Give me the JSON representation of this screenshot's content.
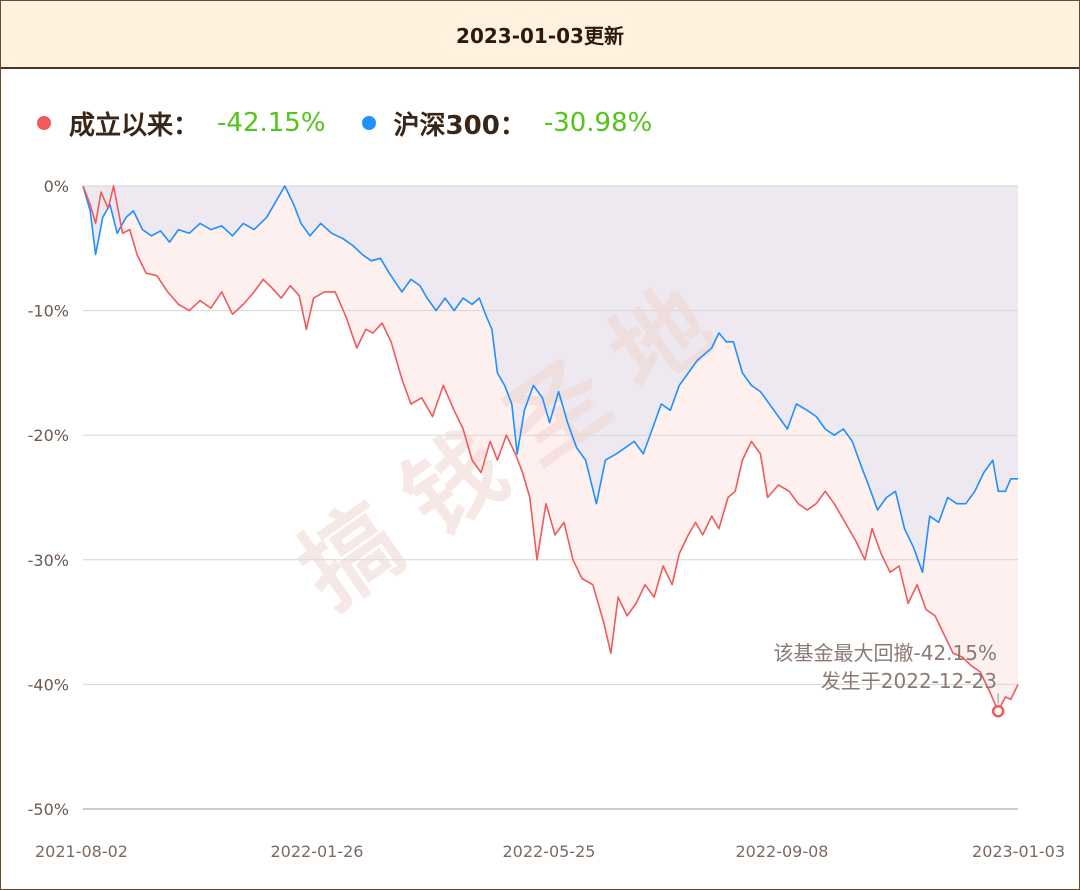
{
  "header": {
    "title": "2023-01-03更新"
  },
  "legend": [
    {
      "label": "成立以来：",
      "value": "-42.15%",
      "color": "#f05a5a"
    },
    {
      "label": "沪深300：",
      "value": "-30.98%",
      "color": "#1e90ff"
    }
  ],
  "watermark": "搞钱圣地",
  "annotation": {
    "line1": "该基金最大回撤-42.15%",
    "line2": "发生于2022-12-23",
    "date": "2022-12-23",
    "value": -42.15
  },
  "colors": {
    "fund": "#f05a5a",
    "index": "#1e90ff",
    "fund_area": "#fff0f0",
    "index_area": "#eee8f0",
    "value_positive": "#52c41a"
  },
  "chart_data": {
    "type": "line",
    "x_tick_labels": [
      "2021-08-02",
      "2022-01-26",
      "2022-05-25",
      "2022-09-08",
      "2023-01-03"
    ],
    "y_tick_labels": [
      "0%",
      "-10%",
      "-20%",
      "-30%",
      "-40%",
      "-50%"
    ],
    "ylim": [
      -50,
      0
    ],
    "xlim": [
      "2021-08-02",
      "2023-01-03"
    ],
    "grid": true,
    "legend_position": "top-left",
    "series": [
      {
        "name": "成立以来",
        "points": [
          [
            "2021-08-02",
            0
          ],
          [
            "2021-08-06",
            -1.5
          ],
          [
            "2021-08-09",
            -3
          ],
          [
            "2021-08-12",
            -0.5
          ],
          [
            "2021-08-16",
            -1.8
          ],
          [
            "2021-08-19",
            0
          ],
          [
            "2021-08-24",
            -3.8
          ],
          [
            "2021-08-28",
            -3.5
          ],
          [
            "2021-09-01",
            -5.5
          ],
          [
            "2021-09-06",
            -7
          ],
          [
            "2021-09-12",
            -7.2
          ],
          [
            "2021-09-18",
            -8.5
          ],
          [
            "2021-09-24",
            -9.5
          ],
          [
            "2021-09-30",
            -10
          ],
          [
            "2021-10-06",
            -9.2
          ],
          [
            "2021-10-12",
            -9.8
          ],
          [
            "2021-10-18",
            -8.5
          ],
          [
            "2021-10-24",
            -10.3
          ],
          [
            "2021-10-30",
            -9.5
          ],
          [
            "2021-11-05",
            -8.5
          ],
          [
            "2021-11-10",
            -7.5
          ],
          [
            "2021-11-15",
            -8.2
          ],
          [
            "2021-11-20",
            -9
          ],
          [
            "2021-11-25",
            -8
          ],
          [
            "2021-11-30",
            -8.8
          ],
          [
            "2021-12-04",
            -11.5
          ],
          [
            "2021-12-08",
            -9
          ],
          [
            "2021-12-14",
            -8.5
          ],
          [
            "2021-12-20",
            -8.5
          ],
          [
            "2021-12-26",
            -10.5
          ],
          [
            "2022-01-01",
            -13
          ],
          [
            "2022-01-06",
            -11.5
          ],
          [
            "2022-01-10",
            -11.8
          ],
          [
            "2022-01-15",
            -11
          ],
          [
            "2022-01-20",
            -12.5
          ],
          [
            "2022-01-26",
            -15.5
          ],
          [
            "2022-01-31",
            -17.5
          ],
          [
            "2022-02-06",
            -17
          ],
          [
            "2022-02-12",
            -18.5
          ],
          [
            "2022-02-18",
            -16
          ],
          [
            "2022-02-24",
            -18
          ],
          [
            "2022-03-01",
            -19.5
          ],
          [
            "2022-03-06",
            -22
          ],
          [
            "2022-03-11",
            -23
          ],
          [
            "2022-03-16",
            -20.5
          ],
          [
            "2022-03-20",
            -22
          ],
          [
            "2022-03-25",
            -20
          ],
          [
            "2022-03-30",
            -21.5
          ],
          [
            "2022-04-03",
            -23
          ],
          [
            "2022-04-07",
            -25
          ],
          [
            "2022-04-11",
            -30
          ],
          [
            "2022-04-16",
            -25.5
          ],
          [
            "2022-04-21",
            -28
          ],
          [
            "2022-04-26",
            -27
          ],
          [
            "2022-05-01",
            -30
          ],
          [
            "2022-05-06",
            -31.5
          ],
          [
            "2022-05-12",
            -32
          ],
          [
            "2022-05-18",
            -35
          ],
          [
            "2022-05-22",
            -37.5
          ],
          [
            "2022-05-26",
            -33
          ],
          [
            "2022-05-31",
            -34.5
          ],
          [
            "2022-06-05",
            -33.5
          ],
          [
            "2022-06-10",
            -32
          ],
          [
            "2022-06-15",
            -33
          ],
          [
            "2022-06-20",
            -30.5
          ],
          [
            "2022-06-25",
            -32
          ],
          [
            "2022-06-29",
            -29.5
          ],
          [
            "2022-07-04",
            -28
          ],
          [
            "2022-07-08",
            -27
          ],
          [
            "2022-07-12",
            -28
          ],
          [
            "2022-07-17",
            -26.5
          ],
          [
            "2022-07-21",
            -27.5
          ],
          [
            "2022-07-26",
            -25
          ],
          [
            "2022-07-30",
            -24.5
          ],
          [
            "2022-08-03",
            -22
          ],
          [
            "2022-08-08",
            -20.5
          ],
          [
            "2022-08-13",
            -21.5
          ],
          [
            "2022-08-17",
            -25
          ],
          [
            "2022-08-23",
            -24
          ],
          [
            "2022-08-29",
            -24.5
          ],
          [
            "2022-09-03",
            -25.5
          ],
          [
            "2022-09-08",
            -26
          ],
          [
            "2022-09-13",
            -25.5
          ],
          [
            "2022-09-18",
            -24.5
          ],
          [
            "2022-09-23",
            -25.5
          ],
          [
            "2022-09-29",
            -27
          ],
          [
            "2022-10-05",
            -28.5
          ],
          [
            "2022-10-10",
            -30
          ],
          [
            "2022-10-14",
            -27.5
          ],
          [
            "2022-10-19",
            -29.5
          ],
          [
            "2022-10-24",
            -31
          ],
          [
            "2022-10-29",
            -30.5
          ],
          [
            "2022-11-03",
            -33.5
          ],
          [
            "2022-11-08",
            -32
          ],
          [
            "2022-11-13",
            -34
          ],
          [
            "2022-11-18",
            -34.5
          ],
          [
            "2022-11-23",
            -36
          ],
          [
            "2022-11-28",
            -37.5
          ],
          [
            "2022-12-03",
            -37.8
          ],
          [
            "2022-12-08",
            -38.5
          ],
          [
            "2022-12-13",
            -39
          ],
          [
            "2022-12-18",
            -40.5
          ],
          [
            "2022-12-23",
            -42.15
          ],
          [
            "2022-12-27",
            -41
          ],
          [
            "2022-12-30",
            -41.2
          ],
          [
            "2023-01-03",
            -40
          ]
        ]
      },
      {
        "name": "沪深300",
        "points": [
          [
            "2021-08-02",
            0
          ],
          [
            "2021-08-06",
            -2
          ],
          [
            "2021-08-09",
            -5.5
          ],
          [
            "2021-08-13",
            -2.5
          ],
          [
            "2021-08-17",
            -1.5
          ],
          [
            "2021-08-21",
            -3.8
          ],
          [
            "2021-08-26",
            -2.5
          ],
          [
            "2021-08-30",
            -2
          ],
          [
            "2021-09-04",
            -3.5
          ],
          [
            "2021-09-09",
            -4
          ],
          [
            "2021-09-14",
            -3.6
          ],
          [
            "2021-09-19",
            -4.5
          ],
          [
            "2021-09-24",
            -3.5
          ],
          [
            "2021-09-30",
            -3.8
          ],
          [
            "2021-10-06",
            -3
          ],
          [
            "2021-10-12",
            -3.5
          ],
          [
            "2021-10-18",
            -3.2
          ],
          [
            "2021-10-24",
            -4
          ],
          [
            "2021-10-30",
            -3
          ],
          [
            "2021-11-05",
            -3.5
          ],
          [
            "2021-11-12",
            -2.5
          ],
          [
            "2021-11-18",
            -1
          ],
          [
            "2021-11-22",
            0
          ],
          [
            "2021-11-27",
            -1.5
          ],
          [
            "2021-12-01",
            -3
          ],
          [
            "2021-12-06",
            -4
          ],
          [
            "2021-12-12",
            -3
          ],
          [
            "2021-12-18",
            -3.8
          ],
          [
            "2021-12-24",
            -4.2
          ],
          [
            "2021-12-30",
            -4.8
          ],
          [
            "2022-01-04",
            -5.5
          ],
          [
            "2022-01-09",
            -6
          ],
          [
            "2022-01-14",
            -5.8
          ],
          [
            "2022-01-19",
            -7
          ],
          [
            "2022-01-26",
            -8.5
          ],
          [
            "2022-01-31",
            -7.5
          ],
          [
            "2022-02-05",
            -8
          ],
          [
            "2022-02-09",
            -9
          ],
          [
            "2022-02-14",
            -10
          ],
          [
            "2022-02-19",
            -9
          ],
          [
            "2022-02-24",
            -10
          ],
          [
            "2022-03-01",
            -9
          ],
          [
            "2022-03-06",
            -9.5
          ],
          [
            "2022-03-10",
            -9
          ],
          [
            "2022-03-14",
            -10.5
          ],
          [
            "2022-03-17",
            -11.5
          ],
          [
            "2022-03-20",
            -15
          ],
          [
            "2022-03-24",
            -16
          ],
          [
            "2022-03-28",
            -17.5
          ],
          [
            "2022-03-31",
            -21.5
          ],
          [
            "2022-04-04",
            -18
          ],
          [
            "2022-04-09",
            -16
          ],
          [
            "2022-04-14",
            -17
          ],
          [
            "2022-04-18",
            -19
          ],
          [
            "2022-04-23",
            -16.5
          ],
          [
            "2022-04-28",
            -19
          ],
          [
            "2022-05-03",
            -21
          ],
          [
            "2022-05-08",
            -22
          ],
          [
            "2022-05-14",
            -25.5
          ],
          [
            "2022-05-19",
            -22
          ],
          [
            "2022-05-25",
            -21.5
          ],
          [
            "2022-05-30",
            -21
          ],
          [
            "2022-06-04",
            -20.5
          ],
          [
            "2022-06-09",
            -21.5
          ],
          [
            "2022-06-14",
            -19.5
          ],
          [
            "2022-06-19",
            -17.5
          ],
          [
            "2022-06-24",
            -18
          ],
          [
            "2022-06-29",
            -16
          ],
          [
            "2022-07-04",
            -15
          ],
          [
            "2022-07-09",
            -14
          ],
          [
            "2022-07-13",
            -13.5
          ],
          [
            "2022-07-17",
            -13
          ],
          [
            "2022-07-21",
            -11.8
          ],
          [
            "2022-07-25",
            -12.5
          ],
          [
            "2022-07-29",
            -12.5
          ],
          [
            "2022-08-03",
            -15
          ],
          [
            "2022-08-08",
            -16
          ],
          [
            "2022-08-13",
            -16.5
          ],
          [
            "2022-08-18",
            -17.5
          ],
          [
            "2022-08-23",
            -18.5
          ],
          [
            "2022-08-28",
            -19.5
          ],
          [
            "2022-09-02",
            -17.5
          ],
          [
            "2022-09-08",
            -18
          ],
          [
            "2022-09-13",
            -18.5
          ],
          [
            "2022-09-18",
            -19.5
          ],
          [
            "2022-09-23",
            -20
          ],
          [
            "2022-09-28",
            -19.5
          ],
          [
            "2022-10-03",
            -20.5
          ],
          [
            "2022-10-08",
            -22.5
          ],
          [
            "2022-10-12",
            -24
          ],
          [
            "2022-10-17",
            -26
          ],
          [
            "2022-10-22",
            -25
          ],
          [
            "2022-10-27",
            -24.5
          ],
          [
            "2022-11-01",
            -27.5
          ],
          [
            "2022-11-06",
            -29
          ],
          [
            "2022-11-11",
            -31
          ],
          [
            "2022-11-15",
            -26.5
          ],
          [
            "2022-11-20",
            -27
          ],
          [
            "2022-11-25",
            -25
          ],
          [
            "2022-11-30",
            -25.5
          ],
          [
            "2022-12-05",
            -25.5
          ],
          [
            "2022-12-10",
            -24.5
          ],
          [
            "2022-12-15",
            -23
          ],
          [
            "2022-12-20",
            -22
          ],
          [
            "2022-12-23",
            -24.5
          ],
          [
            "2022-12-27",
            -24.5
          ],
          [
            "2022-12-30",
            -23.5
          ],
          [
            "2023-01-03",
            -23.5
          ]
        ]
      }
    ]
  }
}
